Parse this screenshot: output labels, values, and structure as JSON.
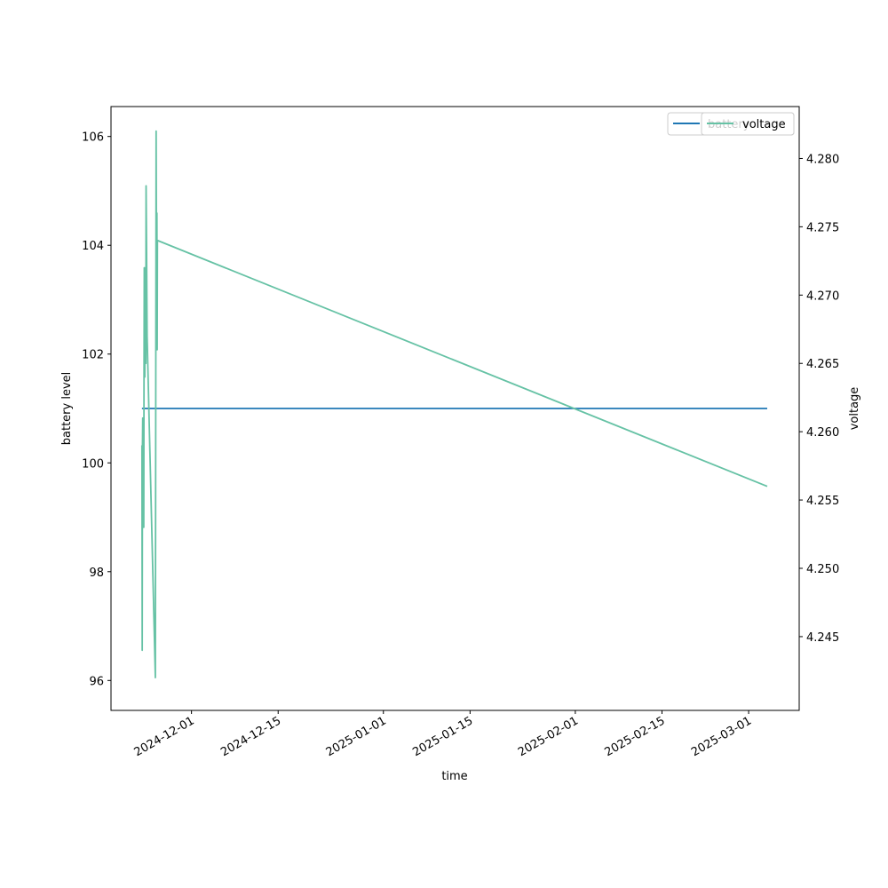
{
  "chart_data": {
    "type": "line",
    "xlabel": "time",
    "ylabel_left": "battery level",
    "ylabel_right": "voltage",
    "x_ticks": [
      "2024-12-01",
      "2024-12-15",
      "2025-01-01",
      "2025-01-15",
      "2025-02-01",
      "2025-02-15",
      "2025-03-01"
    ],
    "y_left_ticks": [
      "96",
      "98",
      "100",
      "102",
      "104",
      "106"
    ],
    "y_right_ticks": [
      "4.245",
      "4.250",
      "4.255",
      "4.260",
      "4.265",
      "4.270",
      "4.275",
      "4.280"
    ],
    "xlim": [
      "2024-11-18 00:00",
      "2025-03-09 04:00"
    ],
    "ylim_left": [
      95.45,
      106.55
    ],
    "ylim_right": [
      4.2396,
      4.2838
    ],
    "grid": false,
    "legend_placement": "upper right",
    "series": [
      {
        "name": "battery",
        "axis": "left",
        "color": "#1f77b4",
        "points": [
          [
            "2024-11-23 00:00",
            101
          ],
          [
            "2025-03-04 00:00",
            101
          ]
        ]
      },
      {
        "name": "voltage",
        "axis": "right",
        "color": "#66c2a5",
        "points": [
          [
            "2024-11-23 00:00",
            4.259
          ],
          [
            "2024-11-23 01:00",
            4.244
          ],
          [
            "2024-11-23 02:00",
            4.259
          ],
          [
            "2024-11-23 03:00",
            4.261
          ],
          [
            "2024-11-23 04:00",
            4.257
          ],
          [
            "2024-11-23 05:00",
            4.259
          ],
          [
            "2024-11-23 07:00",
            4.253
          ],
          [
            "2024-11-23 08:00",
            4.264
          ],
          [
            "2024-11-23 09:00",
            4.272
          ],
          [
            "2024-11-23 11:00",
            4.264
          ],
          [
            "2024-11-23 13:00",
            4.272
          ],
          [
            "2024-11-23 15:00",
            4.265
          ],
          [
            "2024-11-23 16:00",
            4.278
          ],
          [
            "2024-11-23 18:00",
            4.273
          ],
          [
            "2024-11-23 20:00",
            4.267
          ],
          [
            "2024-11-25 04:00",
            4.242
          ],
          [
            "2024-11-25 07:00",
            4.282
          ],
          [
            "2024-11-25 09:00",
            4.267
          ],
          [
            "2024-11-25 10:00",
            4.276
          ],
          [
            "2024-11-25 11:00",
            4.266
          ],
          [
            "2024-11-25 12:00",
            4.274
          ],
          [
            "2025-03-04 00:00",
            4.256
          ]
        ]
      }
    ]
  },
  "legend": {
    "battery_label": "battery",
    "voltage_label": "voltage"
  }
}
